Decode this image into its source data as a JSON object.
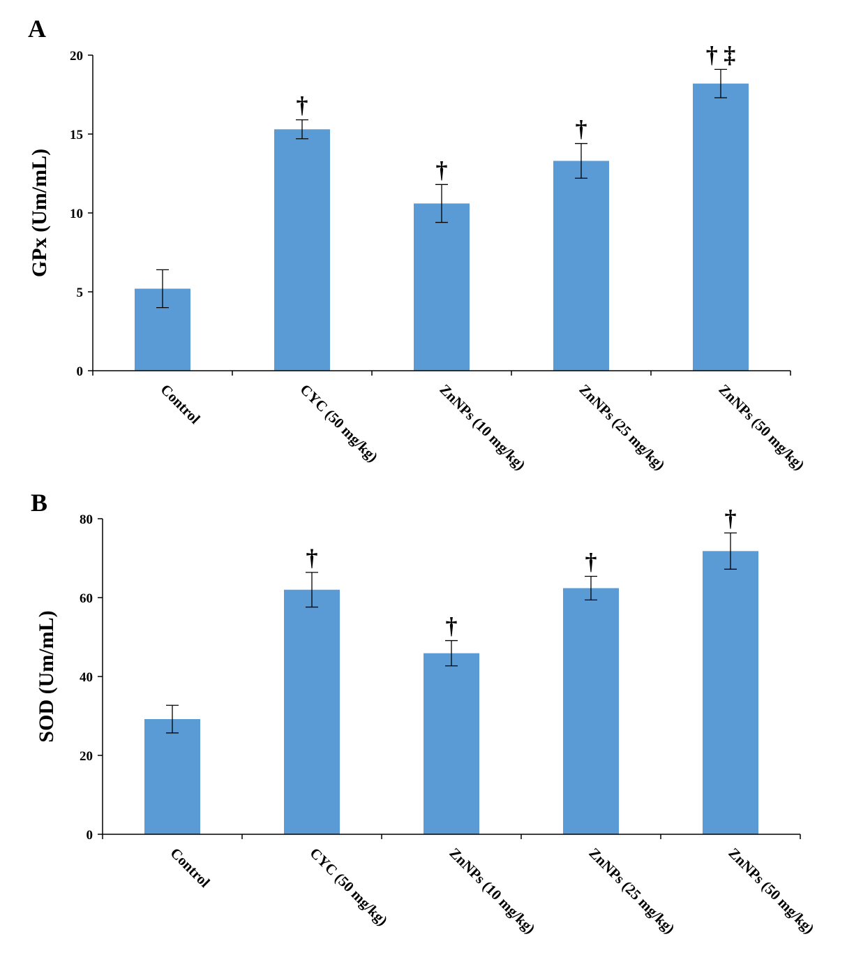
{
  "chart_data": [
    {
      "type": "bar",
      "panel_label": "A",
      "title": "",
      "xlabel": "",
      "ylabel": "GPx (Um/mL)",
      "ylim": [
        0,
        20
      ],
      "yticks": [
        0,
        5,
        10,
        15,
        20
      ],
      "grid": false,
      "legend": "none",
      "categories": [
        "Control",
        "CYC (50 mg/kg)",
        "ZnNPs (10 mg/kg)",
        "ZnNPs (25 mg/kg)",
        "ZnNPs (50 mg/kg)"
      ],
      "series": [
        {
          "values": [
            5.2,
            15.3,
            10.6,
            13.3,
            18.2
          ],
          "error": [
            1.2,
            0.6,
            1.2,
            1.1,
            0.9
          ],
          "significance": [
            "",
            "†",
            "†",
            "†",
            "† ‡"
          ],
          "color": "#5b9bd5"
        }
      ]
    },
    {
      "type": "bar",
      "panel_label": "B",
      "title": "",
      "xlabel": "",
      "ylabel": "SOD (Um/mL)",
      "ylim": [
        0,
        80
      ],
      "yticks": [
        0,
        20,
        40,
        60,
        80
      ],
      "grid": false,
      "legend": "none",
      "categories": [
        "Control",
        "CYC (50 mg/kg)",
        "ZnNPs (10 mg/kg)",
        "ZnNPs (25 mg/kg)",
        "ZnNPs (50 mg/kg)"
      ],
      "series": [
        {
          "values": [
            29.2,
            62.0,
            45.9,
            62.4,
            71.8
          ],
          "error": [
            3.5,
            4.4,
            3.2,
            3.0,
            4.6
          ],
          "significance": [
            "",
            "†",
            "†",
            "†",
            "†"
          ],
          "color": "#5b9bd5"
        }
      ]
    }
  ]
}
